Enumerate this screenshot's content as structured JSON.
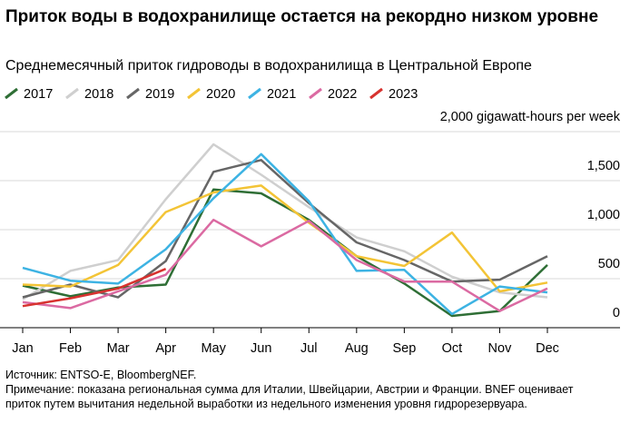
{
  "chart_data": {
    "type": "line",
    "title": "Приток воды в водохранилище остается на рекордно низком уровне",
    "subtitle": "Среднемесячный приток гидроводы в водохранилища в Центральной Европе",
    "source": "Источник: ENTSO-E, BloombergNEF.",
    "note": "Примечание: показана региональная сумма для Италии, Швейцарии, Австрии и Франции. BNEF оценивает приток путем вычитания недельной выработки из недельного изменения уровня гидрорезервуара.",
    "categories": [
      "Jan",
      "Feb",
      "Mar",
      "Apr",
      "May",
      "Jun",
      "Jul",
      "Aug",
      "Sep",
      "Oct",
      "Nov",
      "Dec"
    ],
    "ylim": [
      0,
      2000
    ],
    "yticks": [
      0,
      500,
      {
        "value": 1000,
        "label": "1,000"
      },
      {
        "value": 1500,
        "label": "1,500"
      },
      {
        "value": 2000,
        "label": "2,000 gigawatt-hours per week"
      }
    ],
    "grid": true,
    "series": [
      {
        "name": "2017",
        "color": "#2e6e35",
        "values": [
          430,
          320,
          410,
          440,
          1410,
          1370,
          1100,
          730,
          450,
          120,
          170,
          640
        ]
      },
      {
        "name": "2018",
        "color": "#cfcfcf",
        "values": [
          290,
          580,
          690,
          1310,
          1870,
          1560,
          1230,
          920,
          780,
          520,
          360,
          310
        ]
      },
      {
        "name": "2019",
        "color": "#666666",
        "values": [
          310,
          440,
          310,
          680,
          1590,
          1710,
          1270,
          870,
          690,
          470,
          490,
          730
        ]
      },
      {
        "name": "2020",
        "color": "#f3c436",
        "values": [
          440,
          420,
          640,
          1180,
          1380,
          1450,
          1070,
          730,
          630,
          970,
          370,
          460
        ]
      },
      {
        "name": "2021",
        "color": "#3db3e3",
        "values": [
          610,
          480,
          450,
          800,
          1320,
          1770,
          1290,
          580,
          590,
          140,
          420,
          360
        ]
      },
      {
        "name": "2022",
        "color": "#db6aa2",
        "values": [
          260,
          200,
          370,
          540,
          1100,
          830,
          1090,
          690,
          470,
          470,
          170,
          400
        ]
      },
      {
        "name": "2023",
        "color": "#d7322f",
        "values": [
          220,
          300,
          400,
          600,
          null,
          null,
          null,
          null,
          null,
          null,
          null,
          null
        ]
      }
    ]
  }
}
